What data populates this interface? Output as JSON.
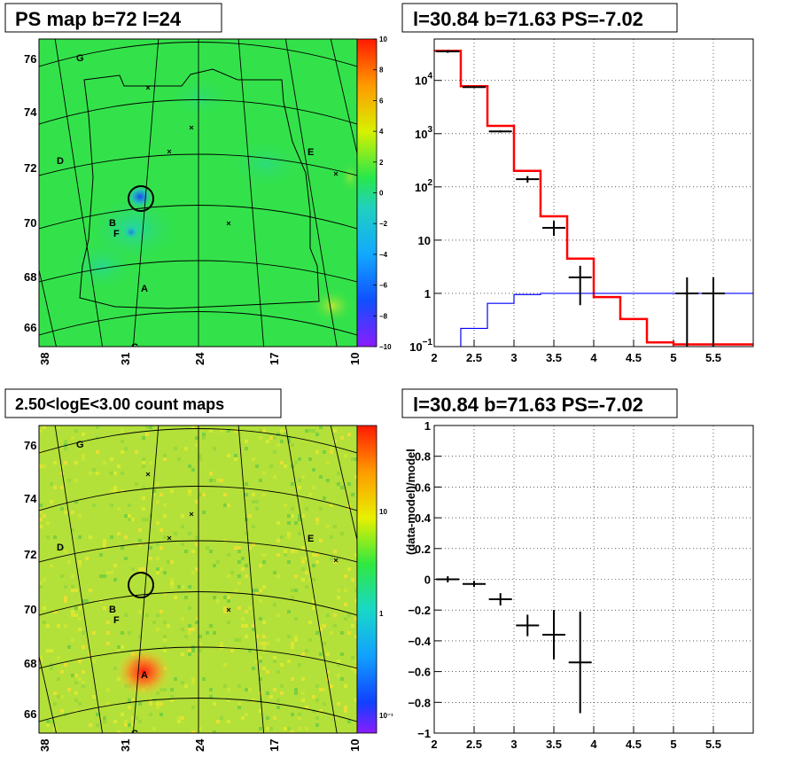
{
  "chart_data": [
    {
      "type": "heatmap",
      "title": "PS map b=72 l=24",
      "colorbar": {
        "min": -10,
        "max": 10,
        "ticks": [
          "10",
          "8",
          "6",
          "4",
          "2",
          "0",
          "−2",
          "−4",
          "−6",
          "−8",
          "−10"
        ]
      },
      "x_ticks": [
        "38",
        "31",
        "24",
        "17",
        "10"
      ],
      "y_ticks": [
        "76",
        "74",
        "72",
        "70",
        "68",
        "66"
      ],
      "source_labels": [
        "G",
        "D",
        "E",
        "B",
        "F",
        "A",
        "C"
      ],
      "colors": {
        "field": "#33e24a",
        "cool": "#21c9a8",
        "hot": "#ff4a2a"
      }
    },
    {
      "type": "line",
      "title": "l=30.84 b=71.63 PS=-7.02",
      "yscale": "log",
      "xlim": [
        2,
        6
      ],
      "ylim": [
        0.1,
        60000
      ],
      "x_ticks": [
        "2",
        "2.5",
        "3",
        "3.5",
        "4",
        "4.5",
        "5",
        "5.5"
      ],
      "y_ticks": [
        {
          "value": 10000,
          "base": "10",
          "exp": "4"
        },
        {
          "value": 1000,
          "base": "10",
          "exp": "3"
        },
        {
          "value": 100,
          "base": "10",
          "exp": "2"
        },
        {
          "value": 10,
          "base": "10",
          "exp": ""
        },
        {
          "value": 1,
          "base": "1",
          "exp": ""
        },
        {
          "value": 0.1,
          "base": "10",
          "exp": "−1"
        }
      ],
      "grid": true,
      "series": [
        {
          "color": "#ff0000",
          "edges": [
            2,
            2.333,
            2.667,
            3.0,
            3.333,
            3.667,
            4.0,
            4.333,
            4.667,
            5.0,
            6.0
          ],
          "values": [
            36000,
            7800,
            1400,
            200,
            28,
            4.5,
            0.85,
            0.33,
            0.12,
            0.11
          ]
        },
        {
          "color": "#0000ff",
          "edges": [
            2,
            2.333,
            2.667,
            3.0,
            3.333,
            3.667,
            4.0,
            4.333,
            4.667,
            5.0,
            6.0
          ],
          "values": [
            0.05,
            0.22,
            0.65,
            0.95,
            1.0,
            1.0,
            1.0,
            1.0,
            1.0,
            1.0
          ]
        },
        {
          "color": "#000000",
          "x": [
            2.17,
            2.5,
            2.83,
            3.17,
            3.5,
            3.83,
            5.17,
            5.5
          ],
          "y": [
            35000,
            7500,
            1100,
            140,
            17,
            2.0,
            1.0,
            1.0
          ],
          "ylow": [
            33000,
            7200,
            1050,
            120,
            12,
            0.6,
            0.1,
            0.1
          ],
          "yhigh": [
            37000,
            7800,
            1150,
            160,
            23,
            3.3,
            2.0,
            2.0
          ]
        }
      ]
    },
    {
      "type": "heatmap",
      "title": "2.50<logE<3.00 count maps",
      "colorbar": {
        "scale": "log",
        "ticks": [
          "10",
          "1",
          "10⁻¹"
        ]
      },
      "x_ticks": [
        "38",
        "31",
        "24",
        "17",
        "10"
      ],
      "y_ticks": [
        "76",
        "74",
        "72",
        "70",
        "68",
        "66"
      ],
      "source_labels": [
        "G",
        "D",
        "E",
        "B",
        "F",
        "A",
        "C"
      ]
    },
    {
      "type": "scatter",
      "title": "l=30.84 b=71.63 PS=-7.02",
      "ylabel": "(data-model)/model",
      "xlim": [
        2,
        6
      ],
      "ylim": [
        -1,
        1
      ],
      "x_ticks": [
        "2",
        "2.5",
        "3",
        "3.5",
        "4",
        "4.5",
        "5",
        "5.5"
      ],
      "y_ticks": [
        "1",
        "0.8",
        "0.6",
        "0.4",
        "0.2",
        "0",
        "−0.2",
        "−0.4",
        "−0.6",
        "−0.8",
        "−1"
      ],
      "grid": true,
      "points": {
        "x": [
          2.17,
          2.5,
          2.83,
          3.17,
          3.5,
          3.83
        ],
        "y": [
          0.0,
          -0.03,
          -0.13,
          -0.3,
          -0.36,
          -0.54
        ],
        "ylow": [
          -0.02,
          -0.05,
          -0.17,
          -0.37,
          -0.52,
          -0.87
        ],
        "yhigh": [
          0.02,
          -0.01,
          -0.09,
          -0.23,
          -0.2,
          -0.21
        ]
      }
    }
  ]
}
